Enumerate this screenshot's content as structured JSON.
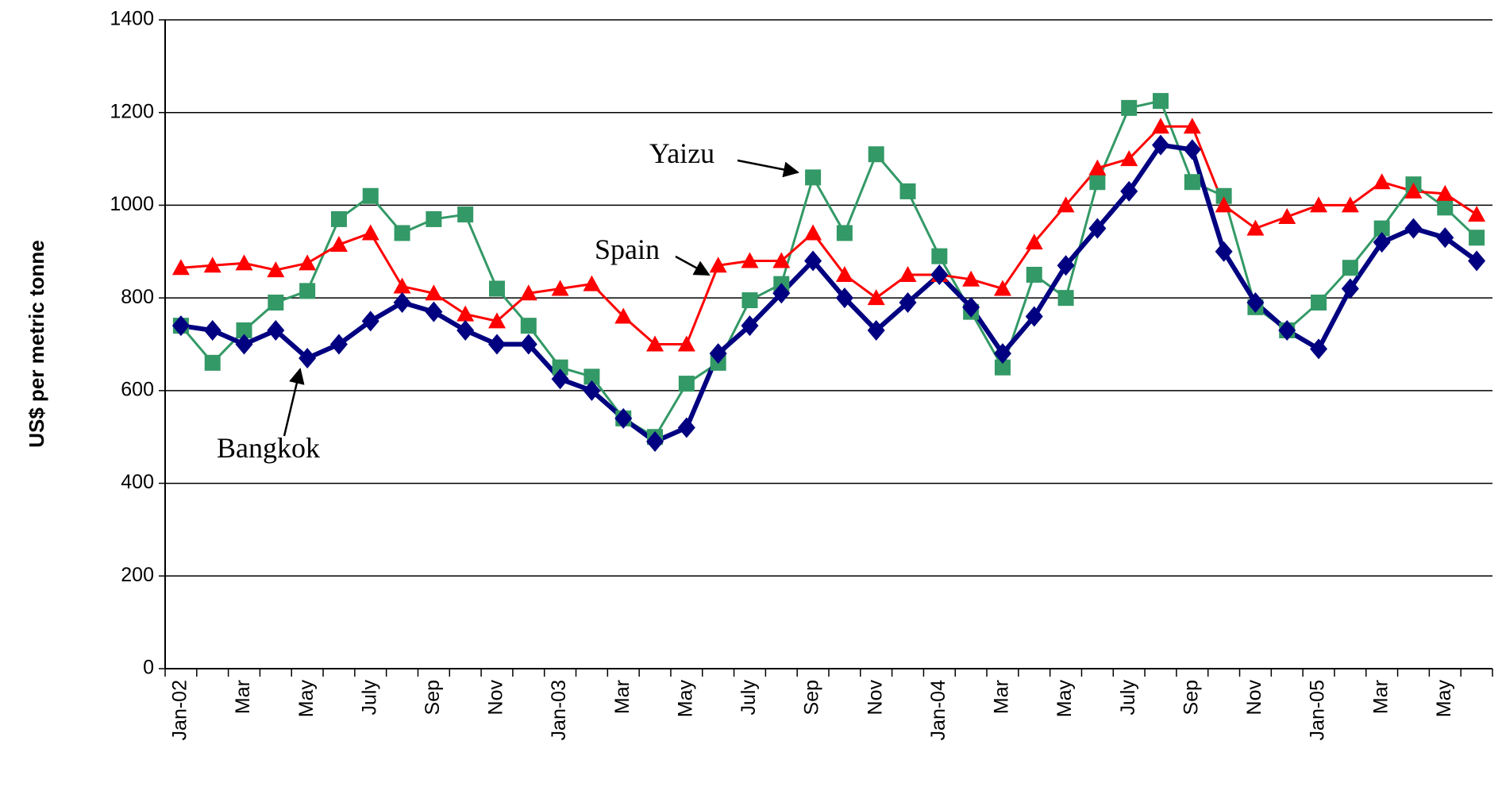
{
  "chart_data": {
    "type": "line",
    "ylabel": "US$ per metric tonne",
    "categories": [
      "Jan-02",
      null,
      "Mar",
      null,
      "May",
      null,
      "July",
      null,
      "Sep",
      null,
      "Nov",
      null,
      "Jan-03",
      null,
      "Mar",
      null,
      "May",
      null,
      "July",
      null,
      "Sep",
      null,
      "Nov",
      null,
      "Jan-04",
      null,
      "Mar",
      null,
      "May",
      null,
      "July",
      null,
      "Sep",
      null,
      "Nov",
      null,
      "Jan-05",
      null,
      "Mar",
      null,
      "May",
      null
    ],
    "series": [
      {
        "name": "Yaizu",
        "color": "#339966",
        "marker": "square",
        "values": [
          740,
          660,
          730,
          790,
          815,
          970,
          1020,
          940,
          970,
          980,
          820,
          740,
          650,
          630,
          540,
          500,
          615,
          660,
          795,
          830,
          1060,
          940,
          1110,
          1030,
          890,
          770,
          650,
          850,
          800,
          1050,
          1210,
          1225,
          1050,
          1020,
          780,
          730,
          790,
          865,
          950,
          1045,
          995,
          930
        ]
      },
      {
        "name": "Spain",
        "color": "#ff0000",
        "marker": "triangle",
        "values": [
          865,
          870,
          875,
          860,
          875,
          915,
          940,
          825,
          810,
          765,
          750,
          810,
          820,
          830,
          760,
          700,
          700,
          870,
          880,
          880,
          940,
          850,
          800,
          850,
          850,
          840,
          820,
          920,
          1000,
          1080,
          1100,
          1170,
          1170,
          1000,
          950,
          975,
          1000,
          1000,
          1050,
          1030,
          1025,
          980
        ]
      },
      {
        "name": "Bangkok",
        "color": "#000080",
        "marker": "diamond",
        "values": [
          740,
          730,
          700,
          730,
          670,
          700,
          750,
          790,
          770,
          730,
          700,
          700,
          625,
          600,
          540,
          490,
          520,
          680,
          740,
          810,
          880,
          800,
          730,
          790,
          850,
          780,
          680,
          760,
          870,
          950,
          1030,
          1130,
          1120,
          900,
          790,
          730,
          690,
          820,
          920,
          950,
          930,
          880
        ]
      }
    ],
    "ylim": [
      0,
      1400
    ],
    "yticks": [
      0,
      200,
      400,
      600,
      800,
      1000,
      1200,
      1400
    ],
    "grid": true
  }
}
